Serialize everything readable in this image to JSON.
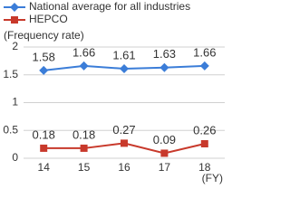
{
  "chart_data": {
    "type": "line",
    "y_axis_label": "(Frequency rate)",
    "x_axis_label": "(FY)",
    "categories": [
      "14",
      "15",
      "16",
      "17",
      "18"
    ],
    "series": [
      {
        "name": "National average for all industries",
        "color": "#3b7dd8",
        "marker": "diamond",
        "values": [
          1.58,
          1.66,
          1.61,
          1.63,
          1.66
        ]
      },
      {
        "name": "HEPCO",
        "color": "#c8392b",
        "marker": "square",
        "values": [
          0.18,
          0.18,
          0.27,
          0.09,
          0.26
        ]
      }
    ],
    "ylim": [
      0,
      2
    ],
    "yticks": [
      0,
      0.5,
      1,
      1.5,
      2
    ],
    "grid": true
  }
}
